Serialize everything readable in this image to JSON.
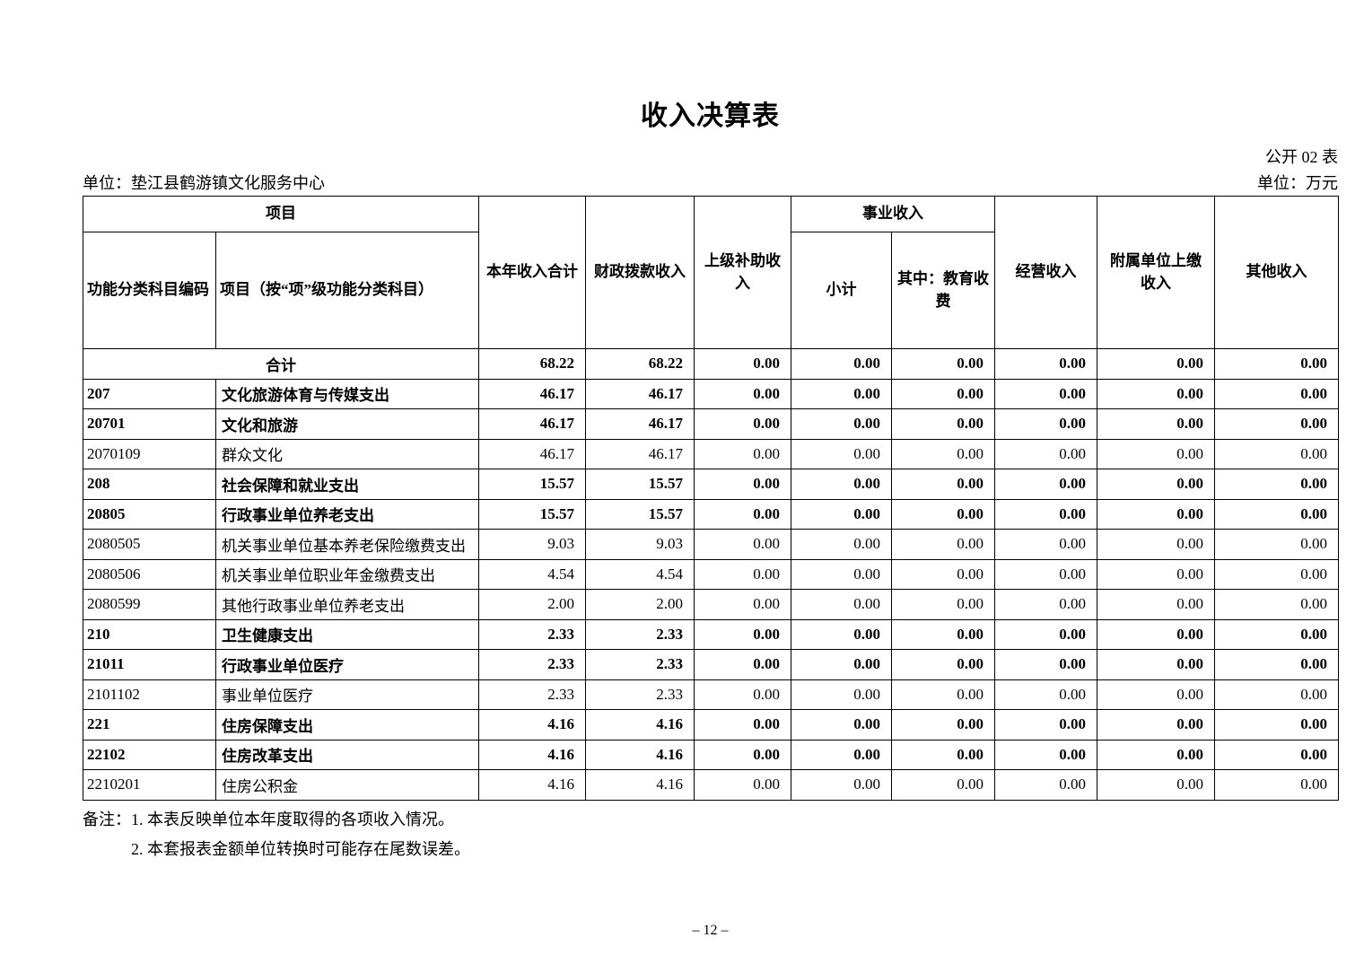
{
  "document": {
    "title": "收入决算表",
    "form_code": "公开 02 表",
    "unit_left": "单位：垫江县鹤游镇文化服务中心",
    "unit_right": "单位：万元",
    "notes": [
      "备注：1. 本表反映单位本年度取得的各项收入情况。",
      "2. 本套报表金额单位转换时可能存在尾数误差。"
    ],
    "page_number": "– 12 –"
  },
  "table": {
    "headers": {
      "project_group": "项目",
      "business_income_group": "事业收入",
      "code": "功能分类科目编码",
      "item": "项目（按“项”级功能分类科目）",
      "year_total": "本年收入合计",
      "fiscal": "财政拨款收入",
      "superior_subsidy": "上级补助收入",
      "subtotal": "小计",
      "education_fee": "其中：教育收费",
      "operating": "经营收入",
      "affiliated": "附属单位上缴收入",
      "other": "其他收入"
    },
    "total_row": {
      "label": "合计",
      "bold": true,
      "values": [
        "68.22",
        "68.22",
        "0.00",
        "0.00",
        "0.00",
        "0.00",
        "0.00",
        "0.00"
      ]
    },
    "rows": [
      {
        "code": "207",
        "name": "文化旅游体育与传媒支出",
        "bold": true,
        "values": [
          "46.17",
          "46.17",
          "0.00",
          "0.00",
          "0.00",
          "0.00",
          "0.00",
          "0.00"
        ]
      },
      {
        "code": "20701",
        "name": "文化和旅游",
        "bold": true,
        "values": [
          "46.17",
          "46.17",
          "0.00",
          "0.00",
          "0.00",
          "0.00",
          "0.00",
          "0.00"
        ]
      },
      {
        "code": "2070109",
        "name": "群众文化",
        "bold": false,
        "values": [
          "46.17",
          "46.17",
          "0.00",
          "0.00",
          "0.00",
          "0.00",
          "0.00",
          "0.00"
        ]
      },
      {
        "code": "208",
        "name": "社会保障和就业支出",
        "bold": true,
        "values": [
          "15.57",
          "15.57",
          "0.00",
          "0.00",
          "0.00",
          "0.00",
          "0.00",
          "0.00"
        ]
      },
      {
        "code": "20805",
        "name": "行政事业单位养老支出",
        "bold": true,
        "values": [
          "15.57",
          "15.57",
          "0.00",
          "0.00",
          "0.00",
          "0.00",
          "0.00",
          "0.00"
        ]
      },
      {
        "code": "2080505",
        "name": "机关事业单位基本养老保险缴费支出",
        "bold": false,
        "values": [
          "9.03",
          "9.03",
          "0.00",
          "0.00",
          "0.00",
          "0.00",
          "0.00",
          "0.00"
        ]
      },
      {
        "code": "2080506",
        "name": "机关事业单位职业年金缴费支出",
        "bold": false,
        "values": [
          "4.54",
          "4.54",
          "0.00",
          "0.00",
          "0.00",
          "0.00",
          "0.00",
          "0.00"
        ]
      },
      {
        "code": "2080599",
        "name": "其他行政事业单位养老支出",
        "bold": false,
        "values": [
          "2.00",
          "2.00",
          "0.00",
          "0.00",
          "0.00",
          "0.00",
          "0.00",
          "0.00"
        ]
      },
      {
        "code": "210",
        "name": "卫生健康支出",
        "bold": true,
        "values": [
          "2.33",
          "2.33",
          "0.00",
          "0.00",
          "0.00",
          "0.00",
          "0.00",
          "0.00"
        ]
      },
      {
        "code": "21011",
        "name": "行政事业单位医疗",
        "bold": true,
        "values": [
          "2.33",
          "2.33",
          "0.00",
          "0.00",
          "0.00",
          "0.00",
          "0.00",
          "0.00"
        ]
      },
      {
        "code": "2101102",
        "name": "事业单位医疗",
        "bold": false,
        "values": [
          "2.33",
          "2.33",
          "0.00",
          "0.00",
          "0.00",
          "0.00",
          "0.00",
          "0.00"
        ]
      },
      {
        "code": "221",
        "name": "住房保障支出",
        "bold": true,
        "values": [
          "4.16",
          "4.16",
          "0.00",
          "0.00",
          "0.00",
          "0.00",
          "0.00",
          "0.00"
        ]
      },
      {
        "code": "22102",
        "name": "住房改革支出",
        "bold": true,
        "values": [
          "4.16",
          "4.16",
          "0.00",
          "0.00",
          "0.00",
          "0.00",
          "0.00",
          "0.00"
        ]
      },
      {
        "code": "2210201",
        "name": "住房公积金",
        "bold": false,
        "values": [
          "4.16",
          "4.16",
          "0.00",
          "0.00",
          "0.00",
          "0.00",
          "0.00",
          "0.00"
        ]
      }
    ]
  }
}
